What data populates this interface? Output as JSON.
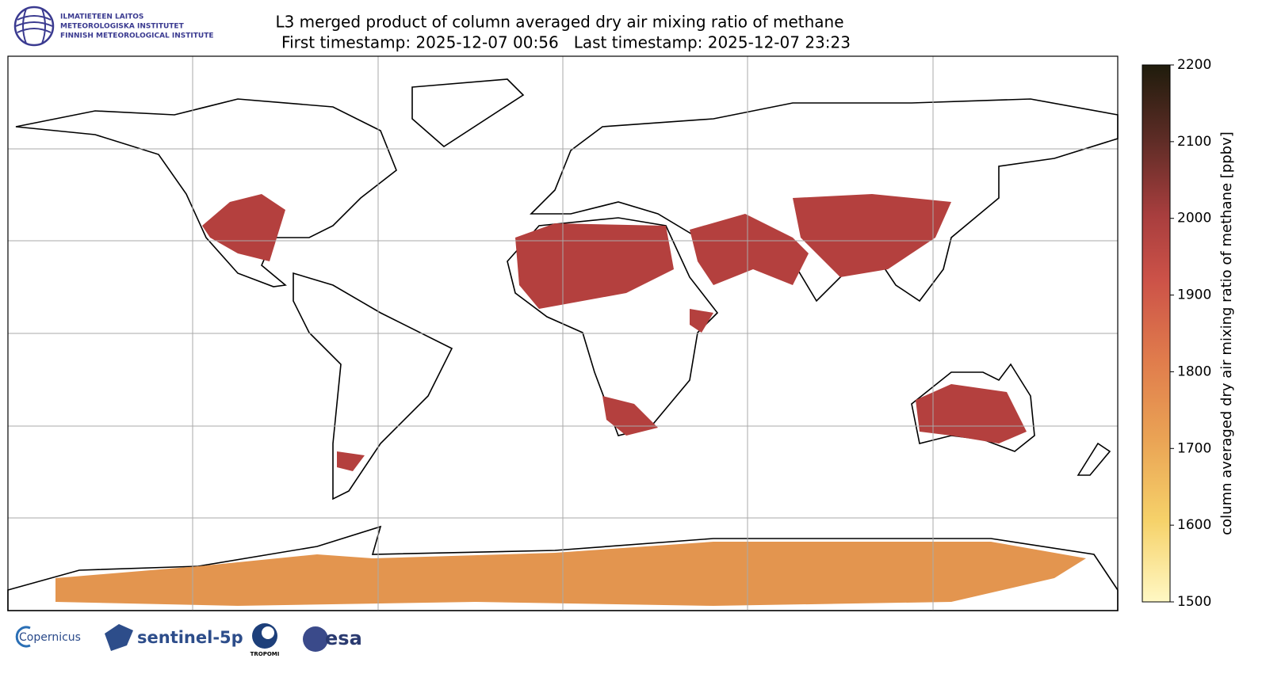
{
  "header": {
    "institute": [
      "ILMATIETEEN LAITOS",
      "METEOROLOGISKA INSTITUTET",
      "FINNISH METEOROLOGICAL INSTITUTE"
    ],
    "title": "L3 merged product of column averaged dry air mixing ratio of methane",
    "subtitle": "First timestamp: 2025-12-07 00:56   Last timestamp: 2025-12-07 23:23"
  },
  "colorbar": {
    "label": "column averaged dry air mixing ratio of methane [ppbv]",
    "lim": [
      1500,
      2200
    ],
    "ticks": [
      1500,
      1600,
      1700,
      1800,
      1900,
      2000,
      2100,
      2200
    ]
  },
  "footer": {
    "logos": [
      "Copernicus",
      "sentinel-5p",
      "TROPOMI",
      "esa"
    ]
  }
}
